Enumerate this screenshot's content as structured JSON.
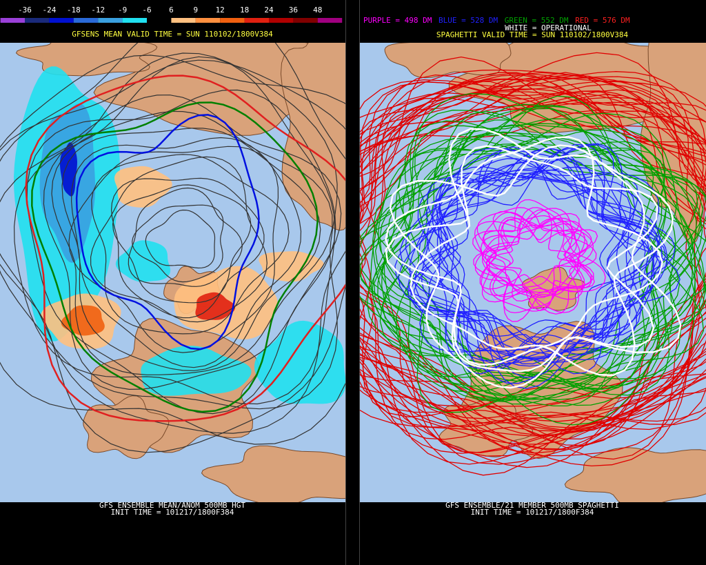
{
  "colorbar": {
    "labels": [
      "-36",
      "-24",
      "-18",
      "-12",
      "-9",
      "-6",
      "6",
      "9",
      "12",
      "18",
      "24",
      "36",
      "48"
    ],
    "colors": [
      "#9a40d8",
      "#1a2a7a",
      "#0010d0",
      "#2a6ad8",
      "#3aa0e0",
      "#20e0f0",
      "#000000",
      "#ffc080",
      "#ff9040",
      "#f06010",
      "#e02010",
      "#b00000",
      "#800000",
      "#a00080"
    ]
  },
  "left": {
    "header": "GFSENS MEAN VALID TIME = SUN 110102/1800V384",
    "footer": [
      "GFS ENSEMBLE MEAN/ANOM 500MB HGT",
      "INIT TIME = 101217/1800F384"
    ]
  },
  "right": {
    "legend": [
      {
        "text": "PURPLE = 498 DM",
        "color": "#ff00ff"
      },
      {
        "text": "BLUE = 528 DM",
        "color": "#2020ff"
      },
      {
        "text": "GREEN = 552 DM",
        "color": "#00a000"
      },
      {
        "text": "RED = 576 DM",
        "color": "#ff2020"
      }
    ],
    "operational": "WHITE = OPERATIONAL",
    "header": "SPAGHETTI VALID TIME = SUN 110102/1800V384",
    "footer": [
      "GFS ENSEMBLE/21 MEMBER 500MB SPAGHETTI",
      "INIT TIME = 101217/1800F384"
    ]
  }
}
